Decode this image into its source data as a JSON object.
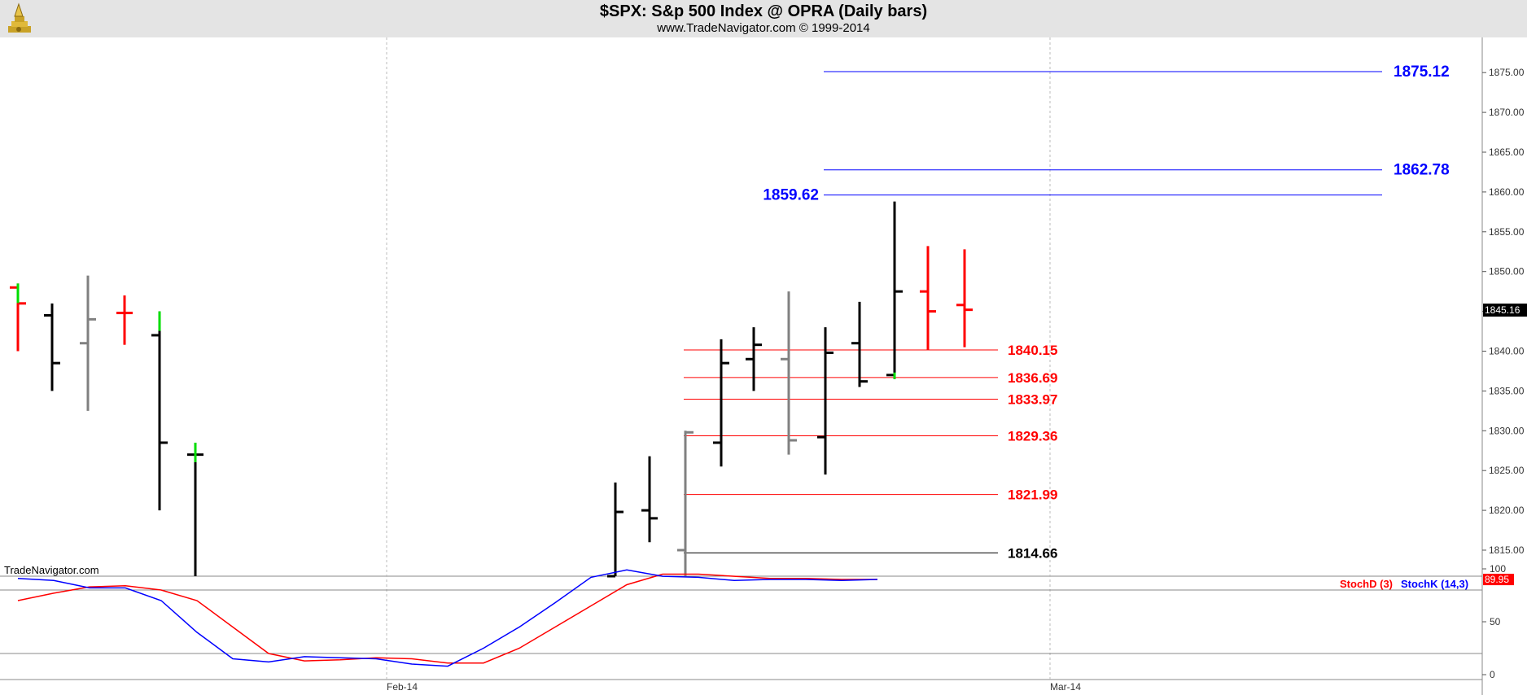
{
  "header": {
    "title": "$SPX:  S&p 500 Index @ OPRA  (Daily bars)",
    "subtitle": "www.TradeNavigator.com © 1999-2014"
  },
  "watermark": "TradeNavigator.com",
  "colors": {
    "up": "#000000",
    "down": "#ff0000",
    "neutral": "#808080",
    "highlight": "#00dd00",
    "blue_level": "#0000ff",
    "red_level": "#ff0000",
    "stoch_d": "#ff0000",
    "stoch_k": "#0000ff"
  },
  "chart_data": [
    {
      "type": "ohlc",
      "title": "$SPX:  S&p 500 Index @ OPRA  (Daily bars)",
      "ylim": [
        1811.5,
        1881.5
      ],
      "y_ticks": [
        "1815.00",
        "1820.00",
        "1825.00",
        "1830.00",
        "1835.00",
        "1840.00",
        "1845.00",
        "1850.00",
        "1855.00",
        "1860.00",
        "1865.00",
        "1870.00",
        "1875.00"
      ],
      "x_tick_labels": [
        "Feb-14",
        "Mar-14"
      ],
      "last_price": "1845.16",
      "bars": [
        {
          "open": 1848.0,
          "high": 1848.5,
          "low": 1840.0,
          "close": 1846.0,
          "color": "down"
        },
        {
          "open": 1844.5,
          "high": 1846.0,
          "low": 1835.0,
          "close": 1838.5,
          "color": "up"
        },
        {
          "open": 1841.0,
          "high": 1849.5,
          "low": 1832.5,
          "close": 1844.0,
          "color": "neutral"
        },
        {
          "open": 1844.8,
          "high": 1847.0,
          "low": 1840.8,
          "close": 1844.8,
          "color": "down"
        },
        {
          "open": 1842.0,
          "high": 1845.0,
          "low": 1820.0,
          "close": 1828.5,
          "color": "up"
        },
        {
          "open": 1827.0,
          "high": 1828.5,
          "low": 1811.5,
          "close": 1827.0,
          "color": "up"
        },
        {
          "open": 1811.5,
          "high": 1823.5,
          "low": 1811.5,
          "close": 1819.8,
          "color": "up"
        },
        {
          "open": 1820.0,
          "high": 1826.8,
          "low": 1816.0,
          "close": 1819.0,
          "color": "up"
        },
        {
          "open": 1815.0,
          "high": 1830.0,
          "low": 1811.5,
          "close": 1829.8,
          "color": "neutral"
        },
        {
          "open": 1828.5,
          "high": 1841.5,
          "low": 1825.5,
          "close": 1838.5,
          "color": "up"
        },
        {
          "open": 1839.0,
          "high": 1843.0,
          "low": 1835.0,
          "close": 1840.8,
          "color": "up"
        },
        {
          "open": 1839.0,
          "high": 1847.5,
          "low": 1827.0,
          "close": 1828.8,
          "color": "neutral"
        },
        {
          "open": 1829.2,
          "high": 1843.0,
          "low": 1824.5,
          "close": 1839.8,
          "color": "up"
        },
        {
          "open": 1841.0,
          "high": 1846.2,
          "low": 1835.5,
          "close": 1836.2,
          "color": "up"
        },
        {
          "open": 1837.0,
          "high": 1858.8,
          "low": 1836.5,
          "close": 1847.5,
          "color": "up"
        },
        {
          "open": 1847.5,
          "high": 1853.2,
          "low": 1840.2,
          "close": 1845.0,
          "color": "down"
        },
        {
          "open": 1845.8,
          "high": 1852.8,
          "low": 1840.5,
          "close": 1845.2,
          "color": "down"
        }
      ],
      "levels": [
        {
          "value": 1875.12,
          "label": "1875.12",
          "color": "blue_level"
        },
        {
          "value": 1862.78,
          "label": "1862.78",
          "color": "blue_level"
        },
        {
          "value": 1859.62,
          "label": "1859.62",
          "color": "blue_level"
        },
        {
          "value": 1840.15,
          "label": "1840.15",
          "color": "red_level"
        },
        {
          "value": 1836.69,
          "label": "1836.69",
          "color": "red_level"
        },
        {
          "value": 1833.97,
          "label": "1833.97",
          "color": "red_level"
        },
        {
          "value": 1829.36,
          "label": "1829.36",
          "color": "red_level"
        },
        {
          "value": 1821.99,
          "label": "1821.99",
          "color": "red_level"
        },
        {
          "value": 1814.66,
          "label": "1814.66",
          "color": "up"
        }
      ]
    },
    {
      "type": "line",
      "ylim": [
        0,
        105
      ],
      "y_ticks": [
        "0",
        "50",
        "100"
      ],
      "reference_lines": [
        80,
        20
      ],
      "last_value": "89.95",
      "legend": [
        "StochD (3)",
        "StochK (14,3)"
      ],
      "series": [
        {
          "name": "StochD (3)",
          "color": "stoch_d",
          "values": [
            70,
            77,
            83,
            84,
            80,
            70,
            45,
            20,
            13,
            14,
            16,
            15,
            11,
            11,
            25,
            45,
            65,
            85,
            95,
            95,
            93,
            91,
            91,
            90,
            90
          ]
        },
        {
          "name": "StochK (14,3)",
          "color": "stoch_k",
          "values": [
            91,
            89,
            82,
            82,
            70,
            40,
            15,
            12,
            17,
            16,
            15,
            10,
            8,
            25,
            45,
            68,
            92,
            99,
            93,
            92,
            89,
            90,
            90,
            89,
            90
          ]
        }
      ]
    }
  ]
}
